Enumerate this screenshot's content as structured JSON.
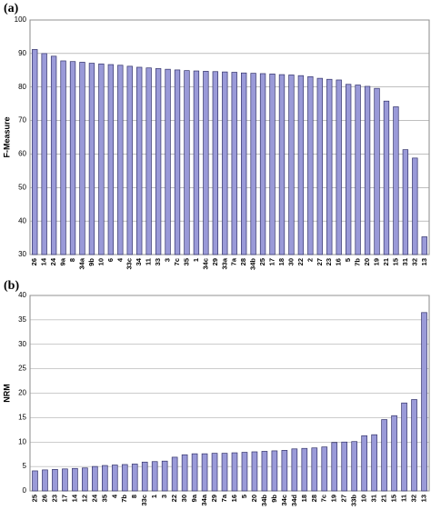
{
  "chart_data": [
    {
      "type": "bar",
      "title": "(a)",
      "ylabel": "F-Measure",
      "categories": [
        "26",
        "14",
        "24",
        "9a",
        "8",
        "34a",
        "9b",
        "10",
        "6",
        "4",
        "33c",
        "34",
        "11",
        "33",
        "3",
        "7c",
        "35",
        "1",
        "34c",
        "29",
        "33a",
        "7a",
        "28",
        "34b",
        "25",
        "17",
        "18",
        "30",
        "22",
        "2",
        "27",
        "23",
        "16",
        "5",
        "7b",
        "20",
        "19",
        "21",
        "15",
        "31",
        "32",
        "13"
      ],
      "values": [
        91.2,
        90,
        89.2,
        87.8,
        87.6,
        87.4,
        87.1,
        86.9,
        86.7,
        86.5,
        86.2,
        85.9,
        85.7,
        85.5,
        85.3,
        85.1,
        84.9,
        84.8,
        84.7,
        84.6,
        84.5,
        84.4,
        84.2,
        84.1,
        84,
        83.9,
        83.7,
        83.6,
        83.4,
        83.1,
        82.6,
        82.3,
        82.1,
        80.8,
        80.6,
        80.2,
        79.6,
        75.8,
        74.1,
        61.3,
        58.8,
        35.3
      ],
      "color": "#9a9ad8",
      "ylim": [
        30,
        100
      ],
      "yticks": [
        30,
        40,
        50,
        60,
        70,
        80,
        90,
        100
      ],
      "grid": true
    },
    {
      "type": "bar",
      "title": "(b)",
      "ylabel": "NRM",
      "categories": [
        "25",
        "26",
        "23",
        "17",
        "14",
        "12",
        "24",
        "35",
        "4",
        "7b",
        "8",
        "33c",
        "1",
        "3",
        "22",
        "30",
        "9a",
        "34a",
        "29",
        "7a",
        "16",
        "5",
        "20",
        "34b",
        "9b",
        "34c",
        "34d",
        "18",
        "28",
        "7c",
        "19",
        "27",
        "33b",
        "10",
        "31",
        "21",
        "15",
        "11",
        "32",
        "13"
      ],
      "values": [
        4.1,
        4.3,
        4.4,
        4.5,
        4.6,
        4.7,
        5.0,
        5.2,
        5.3,
        5.4,
        5.5,
        5.9,
        6.0,
        6.1,
        6.9,
        7.4,
        7.6,
        7.6,
        7.7,
        7.7,
        7.8,
        7.9,
        8.0,
        8.1,
        8.2,
        8.3,
        8.6,
        8.7,
        8.8,
        9.0,
        9.9,
        10.0,
        10.1,
        11.3,
        11.5,
        14.6,
        15.4,
        18,
        18.7,
        36.5
      ],
      "color": "#9a9ad8",
      "ylim": [
        0,
        40
      ],
      "yticks": [
        0,
        5,
        10,
        15,
        20,
        25,
        30,
        35,
        40
      ],
      "grid": true
    }
  ]
}
